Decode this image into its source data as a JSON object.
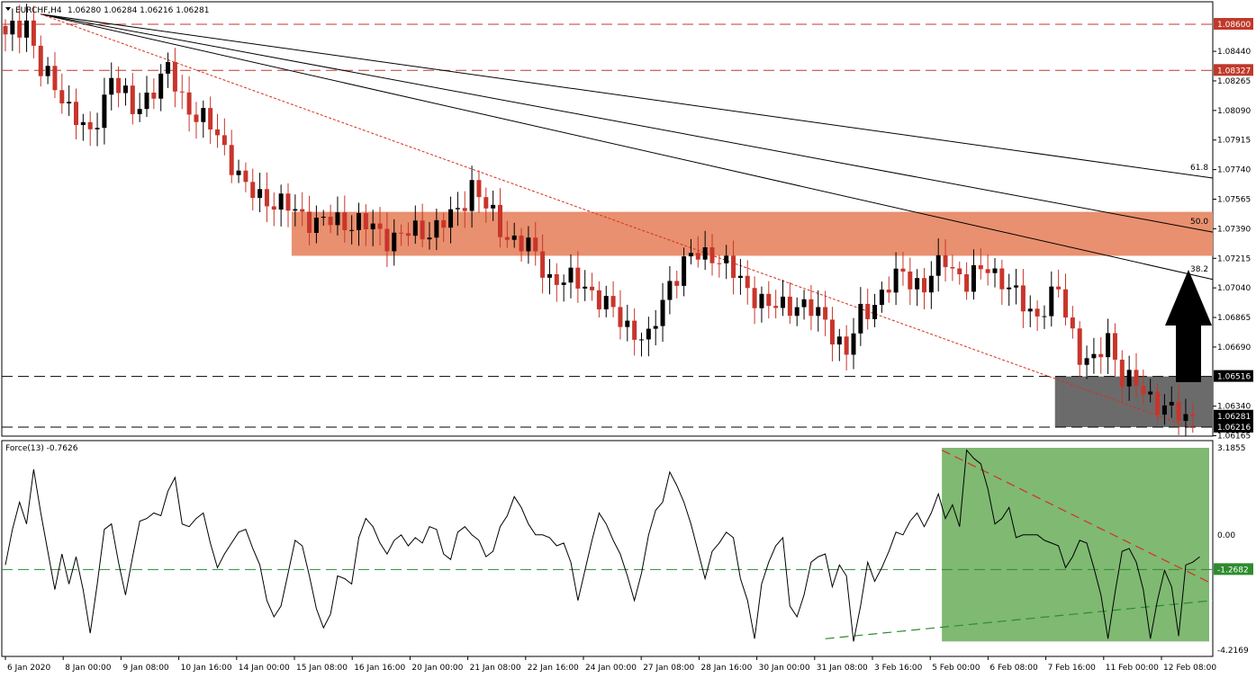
{
  "header": {
    "symbol_label": "EURCHF,H4",
    "ohlc_label": "1.06280 1.06284 1.06216 1.06281",
    "indicator_label": "Force(13) -0.7626"
  },
  "colors": {
    "bull": "#000000",
    "bear": "#c8352b",
    "resistance_zone": "#e8906f",
    "support_zone": "#6b6b6b",
    "force_zone": "#7fb972",
    "level_line": "#c0392b",
    "trend_line": "#d7301f",
    "force_dashed": "#2e8b2e"
  },
  "chart_data": [
    {
      "type": "candlestick",
      "title": "EURCHF,H4",
      "ylim": [
        1.06165,
        1.0866
      ],
      "price_axis_ticks": [
        "1.08440",
        "1.08265",
        "1.08090",
        "1.07915",
        "1.07740",
        "1.07565",
        "1.07390",
        "1.07215",
        "1.07040",
        "1.06865",
        "1.06690",
        "1.06340",
        "1.06165"
      ],
      "level_labels": [
        {
          "label": "1.08600",
          "value": 1.086
        },
        {
          "label": "1.08327",
          "value": 1.08327
        },
        {
          "label": "1.06516",
          "value": 1.06516
        },
        {
          "label": "1.06216",
          "value": 1.06216
        }
      ],
      "current_price_label": "1.06281",
      "current_price": 1.06281,
      "time_axis_labels": [
        "6 Jan 2020",
        "8 Jan 00:00",
        "9 Jan 08:00",
        "10 Jan 16:00",
        "14 Jan 00:00",
        "15 Jan 08:00",
        "16 Jan 16:00",
        "20 Jan 00:00",
        "21 Jan 08:00",
        "22 Jan 16:00",
        "24 Jan 00:00",
        "27 Jan 08:00",
        "28 Jan 16:00",
        "30 Jan 00:00",
        "31 Jan 08:00",
        "3 Feb 16:00",
        "5 Feb 00:00",
        "6 Feb 08:00",
        "7 Feb 16:00",
        "11 Feb 00:00",
        "12 Feb 08:00"
      ],
      "anchor_points": [
        {
          "bar": 0,
          "close": 1.0854
        },
        {
          "bar": 3,
          "close": 1.0862
        },
        {
          "bar": 5,
          "close": 1.0832
        },
        {
          "bar": 8,
          "close": 1.0818
        },
        {
          "bar": 12,
          "close": 1.0792
        },
        {
          "bar": 15,
          "close": 1.083
        },
        {
          "bar": 18,
          "close": 1.0808
        },
        {
          "bar": 23,
          "close": 1.0832
        },
        {
          "bar": 26,
          "close": 1.081
        },
        {
          "bar": 30,
          "close": 1.0795
        },
        {
          "bar": 34,
          "close": 1.0762
        },
        {
          "bar": 38,
          "close": 1.0755
        },
        {
          "bar": 44,
          "close": 1.0743
        },
        {
          "bar": 50,
          "close": 1.0743
        },
        {
          "bar": 54,
          "close": 1.0734
        },
        {
          "bar": 60,
          "close": 1.0738
        },
        {
          "bar": 64,
          "close": 1.0748
        },
        {
          "bar": 66,
          "close": 1.0766
        },
        {
          "bar": 70,
          "close": 1.0738
        },
        {
          "bar": 74,
          "close": 1.0728
        },
        {
          "bar": 77,
          "close": 1.071
        },
        {
          "bar": 82,
          "close": 1.0706
        },
        {
          "bar": 87,
          "close": 1.0685
        },
        {
          "bar": 91,
          "close": 1.0672
        },
        {
          "bar": 94,
          "close": 1.0708
        },
        {
          "bar": 97,
          "close": 1.0722
        },
        {
          "bar": 100,
          "close": 1.0725
        },
        {
          "bar": 104,
          "close": 1.0708
        },
        {
          "bar": 108,
          "close": 1.0692
        },
        {
          "bar": 112,
          "close": 1.0695
        },
        {
          "bar": 116,
          "close": 1.0685
        },
        {
          "bar": 119,
          "close": 1.0665
        },
        {
          "bar": 121,
          "close": 1.0688
        },
        {
          "bar": 123,
          "close": 1.0696
        },
        {
          "bar": 127,
          "close": 1.0713
        },
        {
          "bar": 130,
          "close": 1.0704
        },
        {
          "bar": 133,
          "close": 1.0722
        },
        {
          "bar": 136,
          "close": 1.0706
        },
        {
          "bar": 139,
          "close": 1.0718
        },
        {
          "bar": 143,
          "close": 1.0698
        },
        {
          "bar": 146,
          "close": 1.0688
        },
        {
          "bar": 149,
          "close": 1.0702
        },
        {
          "bar": 152,
          "close": 1.0665
        },
        {
          "bar": 154,
          "close": 1.0658
        },
        {
          "bar": 156,
          "close": 1.0675
        },
        {
          "bar": 158,
          "close": 1.0652
        },
        {
          "bar": 161,
          "close": 1.0642
        },
        {
          "bar": 164,
          "close": 1.0634
        },
        {
          "bar": 167,
          "close": 1.0625
        },
        {
          "bar": 168,
          "close": 1.06281
        }
      ],
      "resistance_zone": {
        "top": 1.0749,
        "bottom": 1.0723
      },
      "support_zone": {
        "top": 1.06516,
        "bottom": 1.06216
      },
      "fibonacci_fan": [
        {
          "label": "38.2",
          "end_value": 1.0709
        },
        {
          "label": "50.0",
          "end_value": 1.0737
        },
        {
          "label": "61.8",
          "end_value": 1.0769
        }
      ],
      "arrow_direction": "up"
    },
    {
      "type": "line",
      "title": "Force(13) -0.7626",
      "ylim": [
        -4.2169,
        3.1855
      ],
      "axis_ticks": [
        "3.1855",
        "0.00",
        "-4.2169"
      ],
      "level_label": "-1.2682",
      "level_value": -1.2682,
      "values": [
        -1.1,
        0.2,
        1.2,
        0.4,
        2.4,
        0.8,
        -0.6,
        -2.0,
        -0.7,
        -1.8,
        -0.8,
        -2.0,
        -3.6,
        -1.8,
        0.2,
        0.4,
        -1.0,
        -2.2,
        -0.8,
        0.5,
        0.6,
        0.8,
        0.7,
        1.6,
        2.1,
        0.4,
        0.3,
        0.6,
        0.8,
        -0.3,
        -1.2,
        -0.7,
        -0.3,
        0.1,
        0.2,
        -0.5,
        -1.1,
        -2.4,
        -3.0,
        -2.6,
        -1.4,
        -0.2,
        -0.4,
        -1.5,
        -2.7,
        -3.4,
        -2.9,
        -1.5,
        -1.6,
        -1.8,
        -0.1,
        0.6,
        0.3,
        -0.3,
        -0.7,
        -0.2,
        0.0,
        -0.4,
        -0.1,
        -0.3,
        0.3,
        0.2,
        -0.7,
        -0.9,
        0.1,
        0.3,
        0.0,
        -0.2,
        -0.8,
        -0.6,
        0.3,
        0.7,
        1.4,
        1.0,
        0.4,
        0.0,
        0.0,
        -0.1,
        -0.4,
        -0.3,
        -1.0,
        -2.4,
        -1.3,
        -0.2,
        0.8,
        0.4,
        -0.2,
        -0.7,
        -1.5,
        -2.4,
        -1.4,
        0.0,
        0.9,
        1.2,
        2.3,
        1.8,
        1.2,
        0.4,
        -0.6,
        -1.6,
        -0.6,
        -0.3,
        0.1,
        -0.1,
        -1.6,
        -2.4,
        -3.8,
        -1.8,
        -1.0,
        -0.4,
        -0.1,
        -2.6,
        -3.0,
        -2.2,
        -1.0,
        -0.8,
        -0.7,
        -1.9,
        -1.1,
        -1.5,
        -3.9,
        -2.6,
        -1.0,
        -1.7,
        -1.2,
        -0.6,
        0.1,
        0.0,
        0.5,
        0.8,
        0.3,
        0.8,
        1.5,
        0.6,
        1.1,
        0.3,
        3.1,
        2.8,
        2.6,
        1.7,
        0.4,
        0.6,
        1.0,
        -0.1,
        0.0,
        0.0,
        0.0,
        -0.2,
        -0.3,
        -0.4,
        -1.2,
        -0.8,
        -0.2,
        -0.3,
        -1.2,
        -2.2,
        -3.8,
        -2.1,
        -0.6,
        -0.5,
        -1.0,
        -2.0,
        -3.8,
        -2.4,
        -1.3,
        -1.9,
        -3.7,
        -1.1,
        -1.0,
        -0.8
      ],
      "zone": {
        "top": 3.1855,
        "bottom": -3.9
      }
    }
  ]
}
